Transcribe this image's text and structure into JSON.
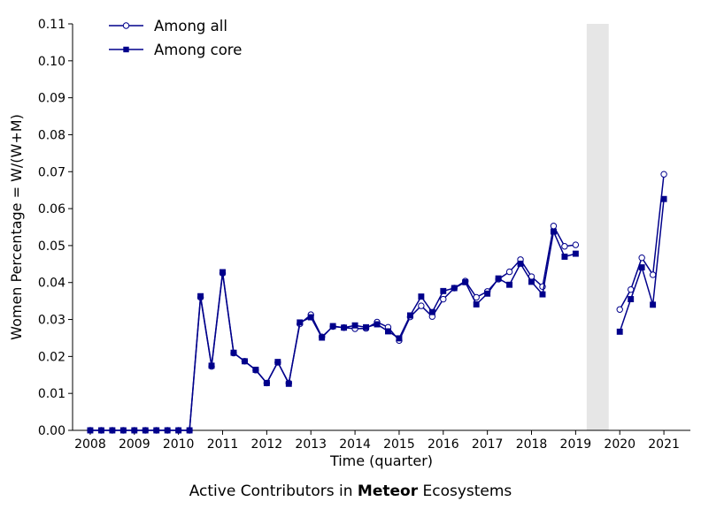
{
  "caption": {
    "prefix": "Active Contributors in ",
    "bold": "Meteor",
    "suffix": " Ecosystems"
  },
  "colors": {
    "series": "#00008b",
    "shade": "#e6e6e6"
  },
  "chart_data": {
    "type": "line",
    "xlabel": "Time (quarter)",
    "ylabel": "Women Percentage = W/(W+M)",
    "xlim": [
      2007.6,
      2021.6
    ],
    "ylim": [
      0,
      0.11
    ],
    "xticks": [
      2008,
      2009,
      2010,
      2011,
      2012,
      2013,
      2014,
      2015,
      2016,
      2017,
      2018,
      2019,
      2020,
      2021
    ],
    "xtick_labels": [
      "2008",
      "2009",
      "2010",
      "2011",
      "2012",
      "2013",
      "2014",
      "2015",
      "2016",
      "2017",
      "2018",
      "2019",
      "2020",
      "2021"
    ],
    "yticks": [
      0,
      0.01,
      0.02,
      0.03,
      0.04,
      0.05,
      0.06,
      0.07,
      0.08,
      0.09,
      0.1,
      0.11
    ],
    "ytick_labels": [
      "0.00",
      "0.01",
      "0.02",
      "0.03",
      "0.04",
      "0.05",
      "0.06",
      "0.07",
      "0.08",
      "0.09",
      "0.10",
      "0.11"
    ],
    "shaded_region": [
      2019.25,
      2019.75
    ],
    "legend_position": "top-left",
    "grid": false,
    "series": [
      {
        "name": "Among all",
        "marker": "open-circle",
        "segments": [
          [
            [
              2008.0,
              0.0
            ],
            [
              2008.25,
              0.0
            ],
            [
              2008.5,
              0.0
            ],
            [
              2008.75,
              0.0
            ],
            [
              2009.0,
              0.0
            ],
            [
              2009.25,
              0.0
            ],
            [
              2009.5,
              0.0
            ],
            [
              2009.75,
              0.0
            ],
            [
              2010.0,
              0.0
            ],
            [
              2010.25,
              0.0
            ],
            [
              2010.5,
              0.036
            ],
            [
              2010.75,
              0.0173
            ],
            [
              2011.0,
              0.0425
            ],
            [
              2011.25,
              0.0209
            ],
            [
              2011.5,
              0.0187
            ],
            [
              2011.75,
              0.0163
            ],
            [
              2012.0,
              0.0128
            ],
            [
              2012.25,
              0.0184
            ],
            [
              2012.5,
              0.0128
            ],
            [
              2012.75,
              0.0288
            ],
            [
              2013.0,
              0.0313
            ],
            [
              2013.25,
              0.0253
            ],
            [
              2013.5,
              0.0281
            ],
            [
              2013.75,
              0.0278
            ],
            [
              2014.0,
              0.0275
            ],
            [
              2014.25,
              0.0276
            ],
            [
              2014.5,
              0.0293
            ],
            [
              2014.75,
              0.0279
            ],
            [
              2015.0,
              0.0243
            ],
            [
              2015.25,
              0.0307
            ],
            [
              2015.5,
              0.0337
            ],
            [
              2015.75,
              0.0308
            ],
            [
              2016.0,
              0.0355
            ],
            [
              2016.25,
              0.0385
            ],
            [
              2016.5,
              0.0404
            ],
            [
              2016.75,
              0.036
            ],
            [
              2017.0,
              0.0376
            ],
            [
              2017.25,
              0.0409
            ],
            [
              2017.5,
              0.0429
            ],
            [
              2017.75,
              0.0462
            ],
            [
              2018.0,
              0.0416
            ],
            [
              2018.25,
              0.0389
            ],
            [
              2018.5,
              0.0553
            ],
            [
              2018.75,
              0.0498
            ],
            [
              2019.0,
              0.0502
            ]
          ],
          [
            [
              2020.0,
              0.0327
            ],
            [
              2020.25,
              0.0381
            ],
            [
              2020.5,
              0.0467
            ],
            [
              2020.75,
              0.0421
            ],
            [
              2021.0,
              0.0693
            ]
          ]
        ]
      },
      {
        "name": "Among core",
        "marker": "filled-square",
        "segments": [
          [
            [
              2008.0,
              0.0
            ],
            [
              2008.25,
              0.0
            ],
            [
              2008.5,
              0.0
            ],
            [
              2008.75,
              0.0
            ],
            [
              2009.0,
              0.0
            ],
            [
              2009.25,
              0.0
            ],
            [
              2009.5,
              0.0
            ],
            [
              2009.75,
              0.0
            ],
            [
              2010.0,
              0.0
            ],
            [
              2010.25,
              0.0
            ],
            [
              2010.5,
              0.0363
            ],
            [
              2010.75,
              0.0175
            ],
            [
              2011.0,
              0.0428
            ],
            [
              2011.25,
              0.021
            ],
            [
              2011.5,
              0.0187
            ],
            [
              2011.75,
              0.0164
            ],
            [
              2012.0,
              0.0128
            ],
            [
              2012.25,
              0.0185
            ],
            [
              2012.5,
              0.0126
            ],
            [
              2012.75,
              0.0292
            ],
            [
              2013.0,
              0.0306
            ],
            [
              2013.25,
              0.0251
            ],
            [
              2013.5,
              0.0282
            ],
            [
              2013.75,
              0.0278
            ],
            [
              2014.0,
              0.0284
            ],
            [
              2014.25,
              0.0279
            ],
            [
              2014.5,
              0.0287
            ],
            [
              2014.75,
              0.0268
            ],
            [
              2015.0,
              0.0249
            ],
            [
              2015.25,
              0.0311
            ],
            [
              2015.5,
              0.0362
            ],
            [
              2015.75,
              0.032
            ],
            [
              2016.0,
              0.0377
            ],
            [
              2016.25,
              0.0385
            ],
            [
              2016.5,
              0.0401
            ],
            [
              2016.75,
              0.0341
            ],
            [
              2017.0,
              0.037
            ],
            [
              2017.25,
              0.0411
            ],
            [
              2017.5,
              0.0394
            ],
            [
              2017.75,
              0.0451
            ],
            [
              2018.0,
              0.0402
            ],
            [
              2018.25,
              0.0368
            ],
            [
              2018.5,
              0.0538
            ],
            [
              2018.75,
              0.047
            ],
            [
              2019.0,
              0.0478
            ]
          ],
          [
            [
              2020.0,
              0.0267
            ],
            [
              2020.25,
              0.0355
            ],
            [
              2020.5,
              0.0441
            ],
            [
              2020.75,
              0.034
            ],
            [
              2021.0,
              0.0626
            ]
          ]
        ]
      }
    ]
  }
}
